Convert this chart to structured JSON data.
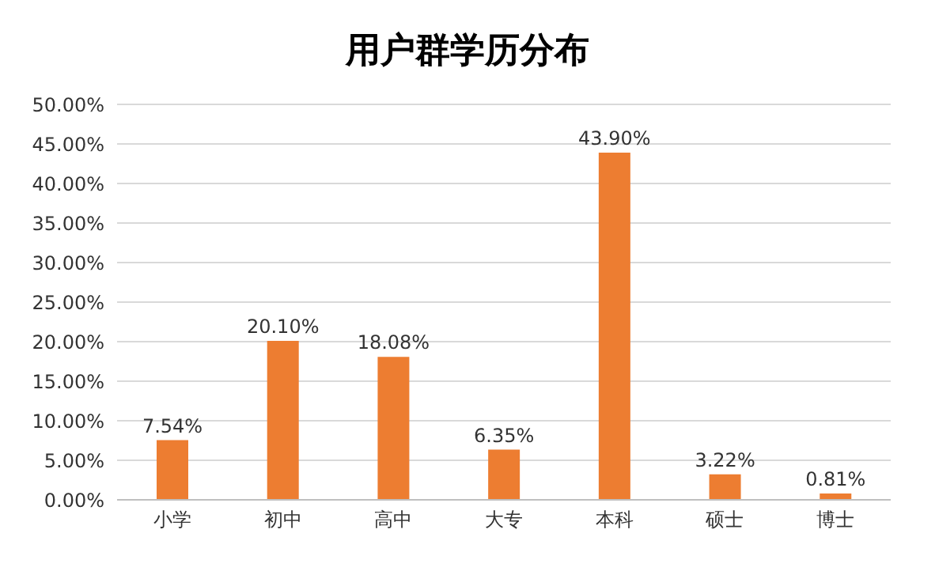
{
  "chart_data": {
    "type": "bar",
    "title": "用户群学历分布",
    "categories": [
      "小学",
      "初中",
      "高中",
      "大专",
      "本科",
      "硕士",
      "博士"
    ],
    "values": [
      7.54,
      20.1,
      18.08,
      6.35,
      43.9,
      3.22,
      0.81
    ],
    "value_labels": [
      "7.54%",
      "20.10%",
      "18.08%",
      "6.35%",
      "43.90%",
      "3.22%",
      "0.81%"
    ],
    "color": "#ed7d31",
    "ylim": [
      0,
      50
    ],
    "yticks": [
      {
        "value": 0,
        "label": "0.00%"
      },
      {
        "value": 5,
        "label": "5.00%"
      },
      {
        "value": 10,
        "label": "10.00%"
      },
      {
        "value": 15,
        "label": "15.00%"
      },
      {
        "value": 20,
        "label": "20.00%"
      },
      {
        "value": 25,
        "label": "25.00%"
      },
      {
        "value": 30,
        "label": "30.00%"
      },
      {
        "value": 35,
        "label": "35.00%"
      },
      {
        "value": 40,
        "label": "40.00%"
      },
      {
        "value": 45,
        "label": "45.00%"
      },
      {
        "value": 50,
        "label": "50.00%"
      }
    ],
    "grid": "y"
  }
}
